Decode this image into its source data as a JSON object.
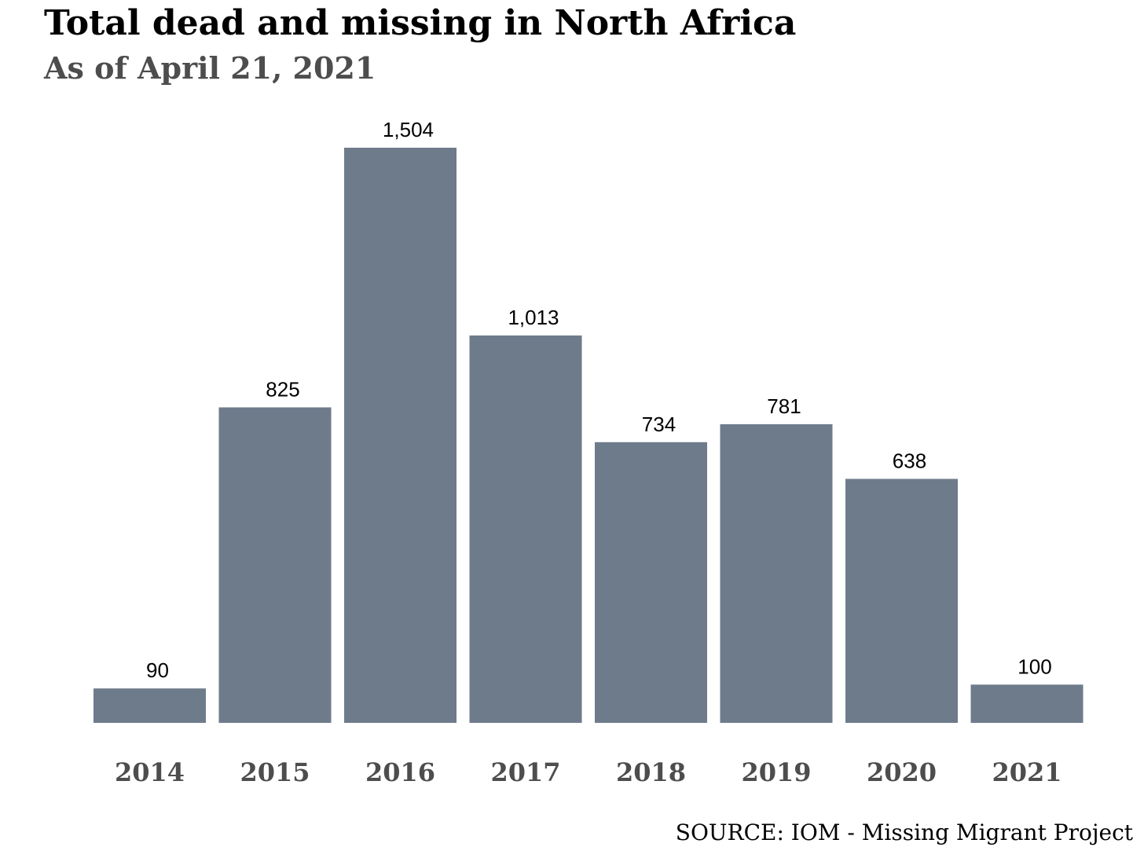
{
  "header": {
    "title": "Total dead and missing in North Africa",
    "subtitle": "As of April 21, 2021"
  },
  "footer": {
    "source": "SOURCE: IOM - Missing Migrant Project"
  },
  "colors": {
    "bar": "#6e7b8b",
    "bar_label": "#000000",
    "tick_label": "#4d4d4d"
  },
  "chart_data": {
    "type": "bar",
    "title": "Total dead and missing in North Africa",
    "subtitle": "As of April 21, 2021",
    "xlabel": "",
    "ylabel": "",
    "categories": [
      "2014",
      "2015",
      "2016",
      "2017",
      "2018",
      "2019",
      "2020",
      "2021"
    ],
    "values": [
      90,
      825,
      1504,
      1013,
      734,
      781,
      638,
      100
    ],
    "value_labels": [
      "90",
      "825",
      "1,504",
      "1,013",
      "734",
      "781",
      "638",
      "100"
    ],
    "ylim": [
      0,
      1504
    ],
    "grid": false,
    "legend": "none",
    "y_axis_visible": false
  }
}
